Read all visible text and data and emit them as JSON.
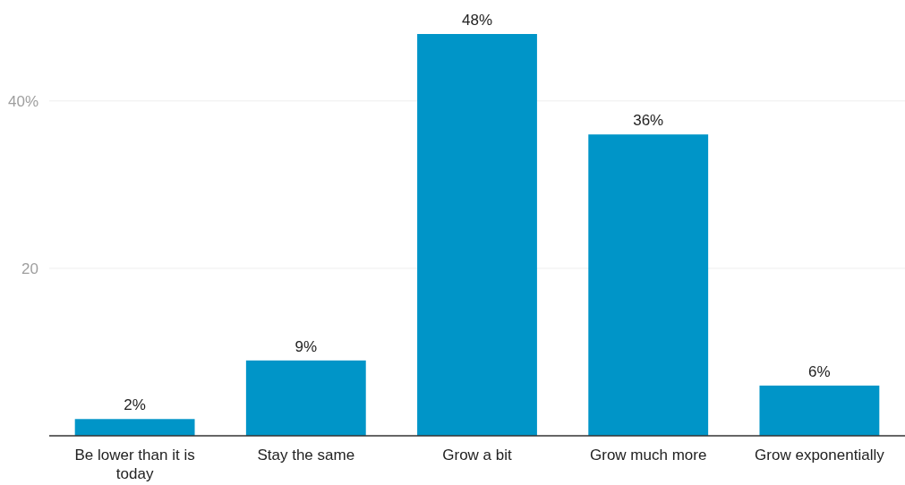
{
  "chart_data": {
    "type": "bar",
    "categories": [
      "Be lower than it is today",
      "Stay the same",
      "Grow a bit",
      "Grow much more",
      "Grow exponentially"
    ],
    "values": [
      2,
      9,
      48,
      36,
      6
    ],
    "value_labels": [
      "2%",
      "9%",
      "48%",
      "36%",
      "6%"
    ],
    "color": "#0095c8",
    "ylim": [
      0,
      48
    ],
    "yticks": [
      {
        "value": 20,
        "label": "20"
      },
      {
        "value": 40,
        "label": "40%"
      }
    ],
    "grid": "y"
  }
}
